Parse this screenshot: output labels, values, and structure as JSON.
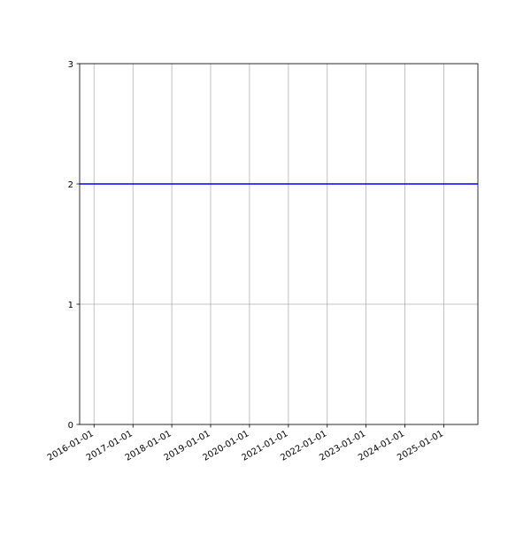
{
  "chart_data": {
    "type": "line",
    "title": "",
    "xlabel": "",
    "ylabel": "",
    "x_axis": "date",
    "xlim": [
      "2015-08-19",
      "2025-11-17"
    ],
    "ylim": [
      0,
      3
    ],
    "x_ticks": [
      "2016-01-01",
      "2017-01-01",
      "2018-01-01",
      "2019-01-01",
      "2020-01-01",
      "2021-01-01",
      "2022-01-01",
      "2023-01-01",
      "2024-01-01",
      "2025-01-01"
    ],
    "y_ticks": [
      0,
      1,
      2,
      3
    ],
    "grid": true,
    "series": [
      {
        "color": "#0000ff",
        "x": [
          "2015-08-19",
          "2025-11-17"
        ],
        "y": [
          2,
          2
        ]
      }
    ]
  }
}
